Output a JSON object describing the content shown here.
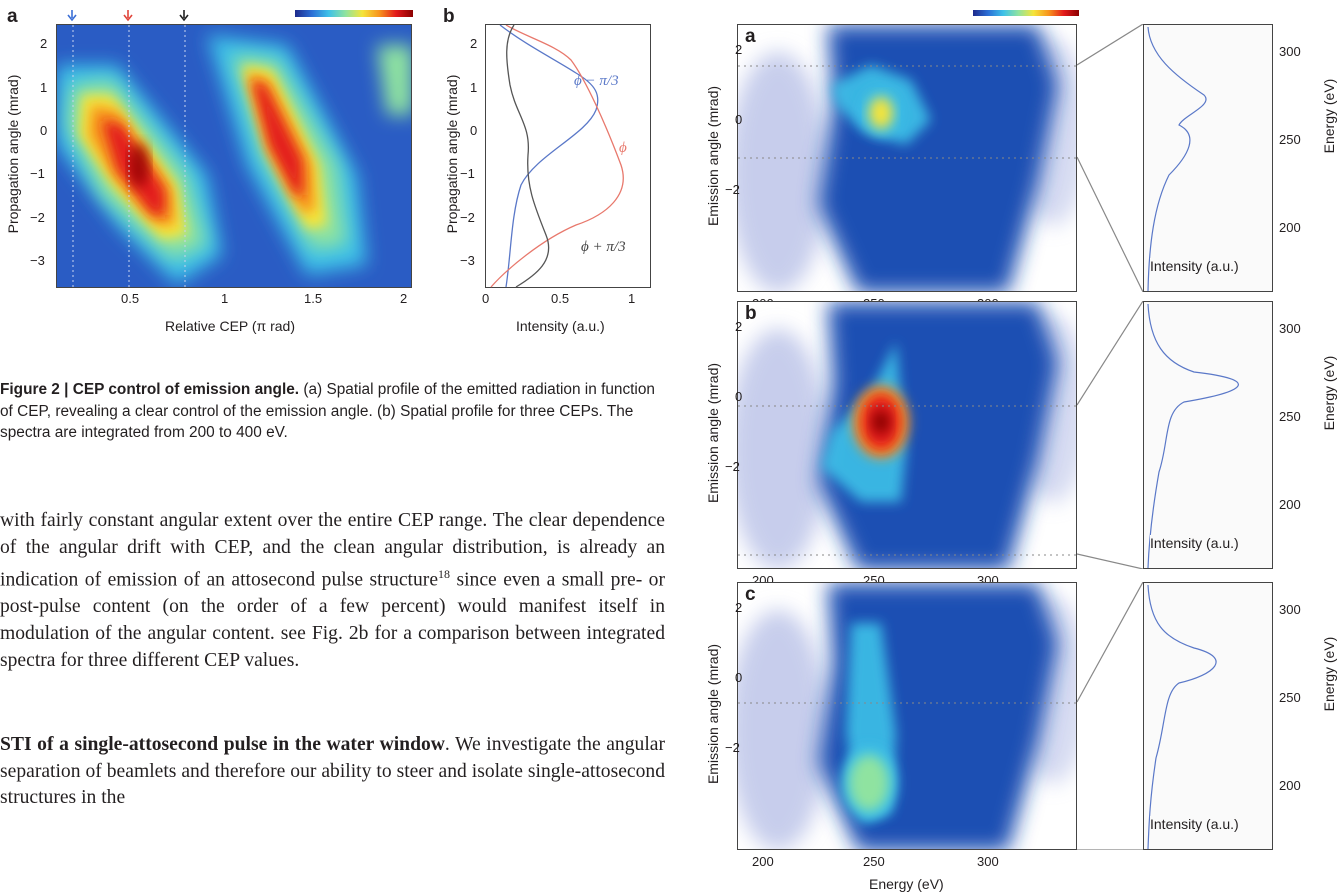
{
  "figure2": {
    "panel_a_label": "a",
    "panel_b_label": "b",
    "panel_a": {
      "xlabel": "Relative CEP (π rad)",
      "ylabel": "Propagation angle (mrad)",
      "xticks": [
        "0.5",
        "1",
        "1.5",
        "2"
      ],
      "yticks": [
        "2",
        "1",
        "0",
        "−1",
        "−2",
        "−3"
      ]
    },
    "panel_b": {
      "xlabel": "Intensity (a.u.)",
      "ylabel": "Propagation angle (mrad)",
      "xticks": [
        "0",
        "0.5",
        "1"
      ],
      "yticks": [
        "2",
        "1",
        "0",
        "−1",
        "−2",
        "−3"
      ],
      "curve_labels": {
        "minus": "ϕ − π/3",
        "zero": "ϕ",
        "plus": "ϕ + π/3"
      },
      "colors": {
        "minus": "#5a78c8",
        "zero": "#e8786c",
        "plus": "#555555"
      }
    },
    "caption_title": "Figure 2 | CEP control of emission angle.",
    "caption_body": " (a) Spatial profile of the emitted radiation in function of CEP, revealing a clear control of the emission angle. (b) Spatial profile for three CEPs. The spectra are integrated from 200 to 400 eV."
  },
  "body_para1": "with fairly constant angular extent over the entire CEP range. The clear dependence of the angular drift with CEP, and the clean angular distribution, is already an indication of emission of an attosecond pulse structure",
  "body_para1_ref": "18",
  "body_para1_rest": " since even a small pre- or post-pulse content (on the order of a few percent) would manifest itself in modulation of the angular content. see Fig. 2b for a comparison between integrated spectra for three different CEP values.",
  "body_heading": "STI of a single-attosecond pulse in the water window",
  "body_para2": ". We investigate the angular separation of beamlets and therefore our ability to steer and isolate single-attosecond structures in the",
  "figure3": {
    "panels": [
      {
        "label": "a"
      },
      {
        "label": "b"
      },
      {
        "label": "c"
      }
    ],
    "ylabel": "Emission angle (mrad)",
    "xlabel": "Energy (eV)",
    "xticks": [
      "200",
      "250",
      "300"
    ],
    "yticks": [
      "2",
      "0",
      "−2"
    ],
    "side_xlabel": "Intensity (a.u.)",
    "side_ylabel": "Energy (eV)",
    "side_yticks": [
      "300",
      "250",
      "200"
    ]
  },
  "colormap": [
    "#1e2a8c",
    "#2b6fd6",
    "#3ec1e8",
    "#8fe3a0",
    "#f5e43a",
    "#f7941d",
    "#e31a1c",
    "#8b0000"
  ]
}
